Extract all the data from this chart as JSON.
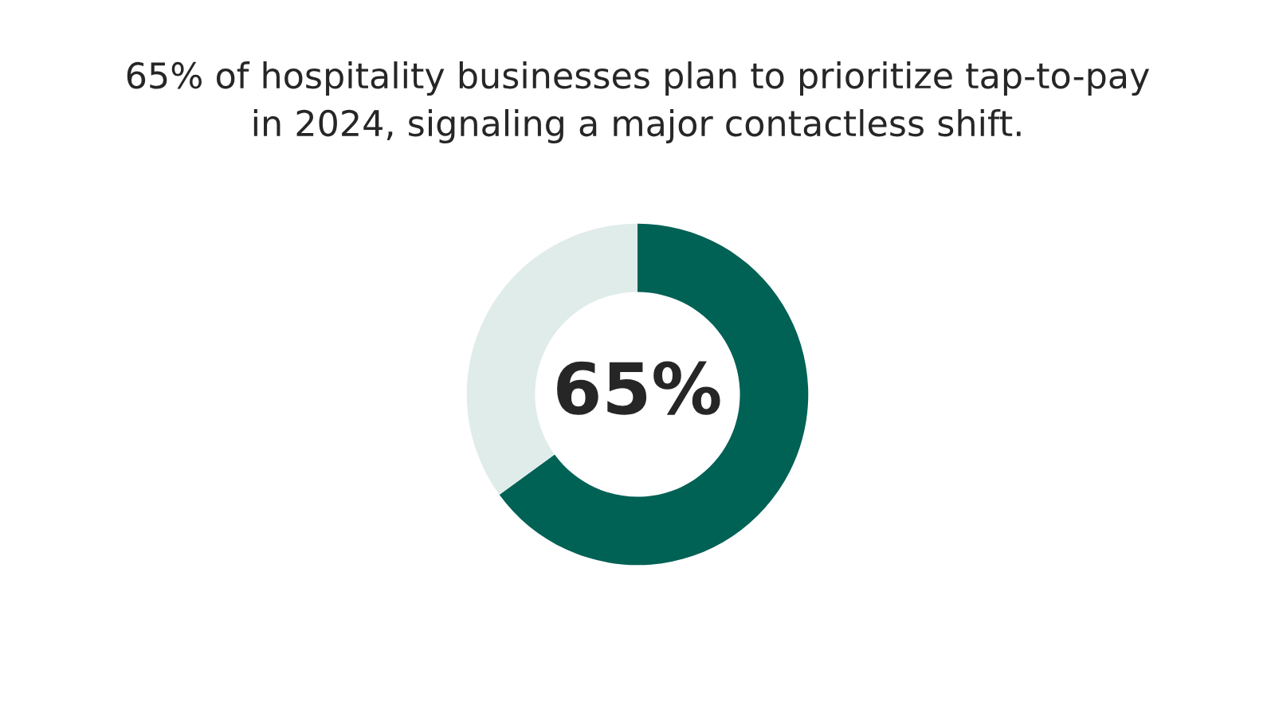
{
  "chart_data": {
    "type": "donut",
    "title": "65% of hospitality businesses plan to prioritize tap-to-pay\nin 2024, signaling a major contactless shift.",
    "categories": [
      null,
      null
    ],
    "values": [
      65,
      35
    ],
    "colors": [
      "#006155",
      "#e0ecea"
    ],
    "value_labels": [
      "65%",
      null
    ]
  }
}
